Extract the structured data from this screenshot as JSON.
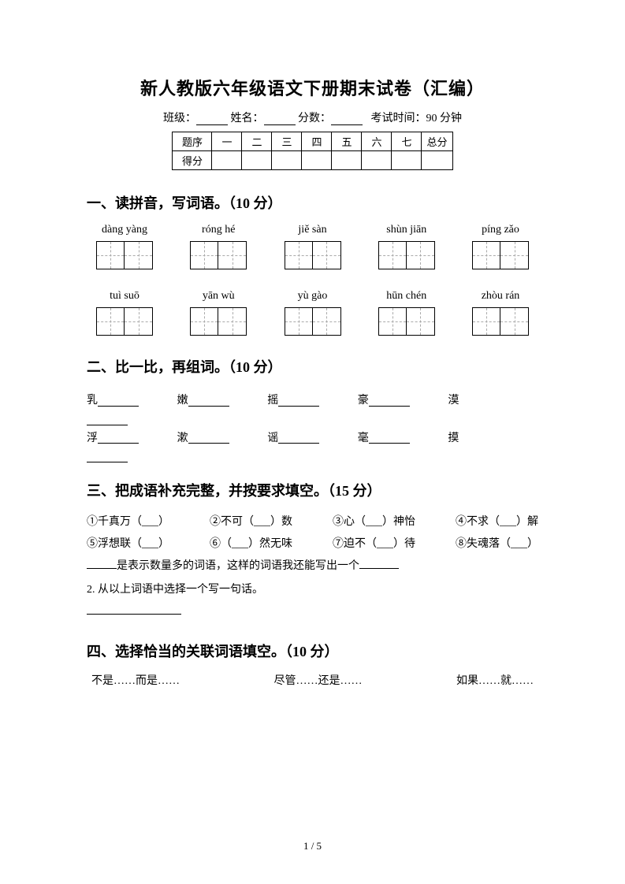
{
  "title": "新人教版六年级语文下册期末试卷（汇编）",
  "info": {
    "class_label": "班级：",
    "name_label": "姓名：",
    "score_label": "分数：",
    "time_label": "考试时间：90 分钟"
  },
  "score_table": {
    "row1": [
      "题序",
      "一",
      "二",
      "三",
      "四",
      "五",
      "六",
      "七",
      "总分"
    ],
    "row2_label": "得分"
  },
  "q1": {
    "heading": "一、读拼音，写词语。（10 分）",
    "row1": [
      "dàng yàng",
      "róng hé",
      "jiě sàn",
      "shùn jiān",
      "píng zǎo"
    ],
    "row2": [
      "tuì suō",
      "yān wù",
      "yù gào",
      "hūn chén",
      "zhòu rán"
    ]
  },
  "q2": {
    "heading": "二、比一比，再组词。（10 分）",
    "row1": [
      "乳",
      "嫩",
      "摇",
      "豪",
      "漠"
    ],
    "row2": [
      "浮",
      "漱",
      "谣",
      "毫",
      "摸"
    ]
  },
  "q3": {
    "heading": "三、把成语补充完整，并按要求填空。（15 分）",
    "items1": [
      "①千真万（___）",
      "②不可（___）数",
      "③心（___）神怡",
      "④不求（___）解"
    ],
    "items2": [
      "⑤浮想联（___）",
      "⑥（___）然无味",
      "⑦迫不（___）待",
      "⑧失魂落（___）"
    ],
    "line_mid": "是表示数量多的词语，这样的词语我还能写出一个",
    "line2": "2. 从以上词语中选择一个写一句话。"
  },
  "q4": {
    "heading": "四、选择恰当的关联词语填空。（10 分）",
    "options": [
      "不是……而是……",
      "尽管……还是……",
      "如果……就……"
    ]
  },
  "footer": "1 / 5"
}
